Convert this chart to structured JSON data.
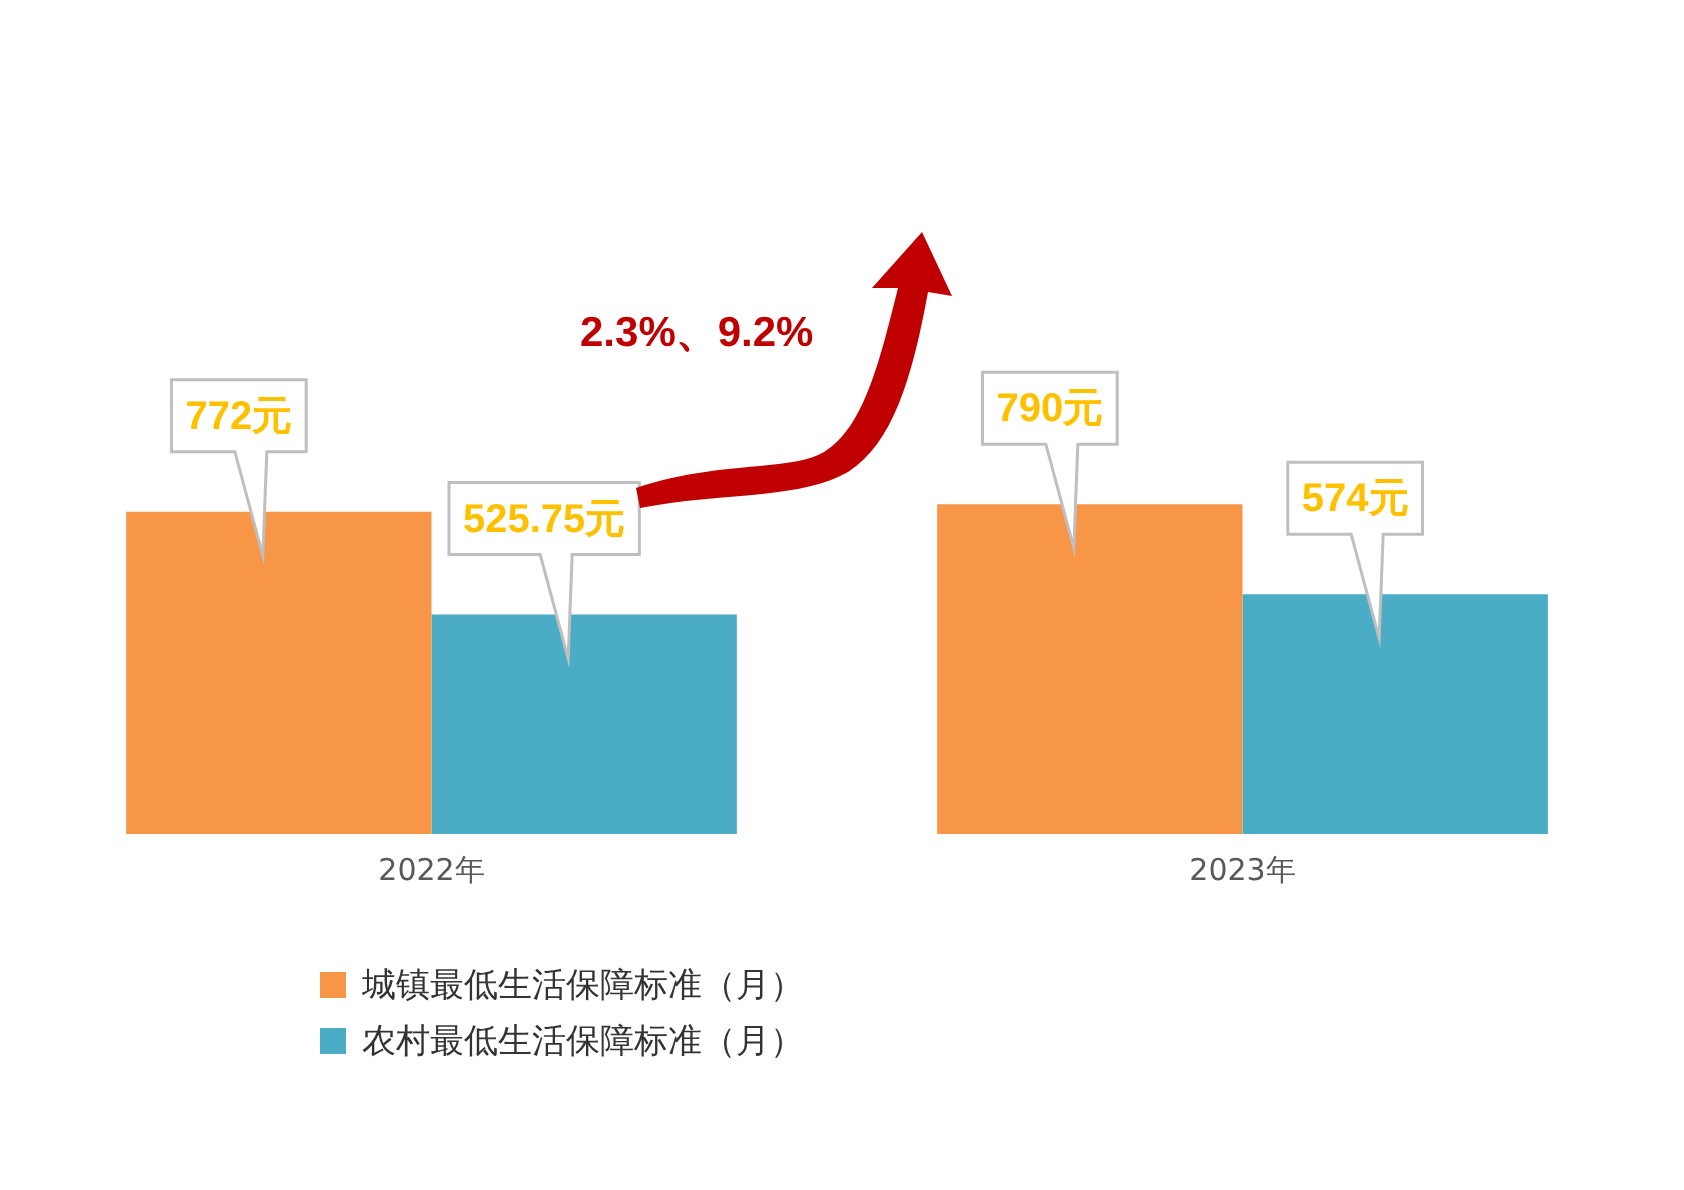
{
  "chart_data": {
    "type": "bar",
    "categories": [
      "2022年",
      "2023年"
    ],
    "series": [
      {
        "name": "城镇最低生活保障标准（月）",
        "color": "#f79646",
        "values": [
          772,
          790
        ],
        "value_labels": [
          "772元",
          "790元"
        ]
      },
      {
        "name": "农村最低生活保障标准（月）",
        "color": "#4bacc6",
        "values": [
          525.75,
          574
        ],
        "value_labels": [
          "525.75元",
          "574元"
        ]
      }
    ],
    "annotations": [
      "2.3%、9.2%"
    ],
    "legend": "bottom left",
    "grid": false,
    "tick_labels": "x"
  }
}
